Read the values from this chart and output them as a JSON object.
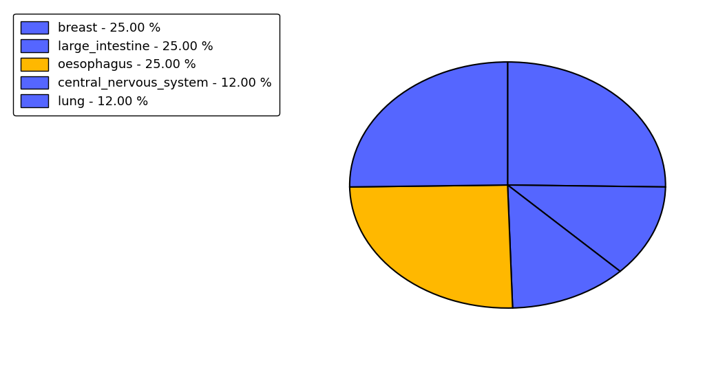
{
  "labels": [
    "breast",
    "lung",
    "central_nervous_system",
    "oesophagus",
    "large_intestine"
  ],
  "values": [
    25.0,
    12.0,
    12.0,
    25.0,
    25.0
  ],
  "colors": [
    "#5566ff",
    "#5566ff",
    "#5566ff",
    "#FFB800",
    "#5566ff"
  ],
  "legend_labels": [
    "breast - 25.00 %",
    "large_intestine - 25.00 %",
    "oesophagus - 25.00 %",
    "central_nervous_system - 12.00 %",
    "lung - 12.00 %"
  ],
  "legend_colors": [
    "#5566ff",
    "#5566ff",
    "#FFB800",
    "#5566ff",
    "#5566ff"
  ],
  "background_color": "#ffffff",
  "figsize": [
    10.24,
    5.38
  ],
  "dpi": 100,
  "startangle": 90,
  "aspect_ratio": 0.78
}
